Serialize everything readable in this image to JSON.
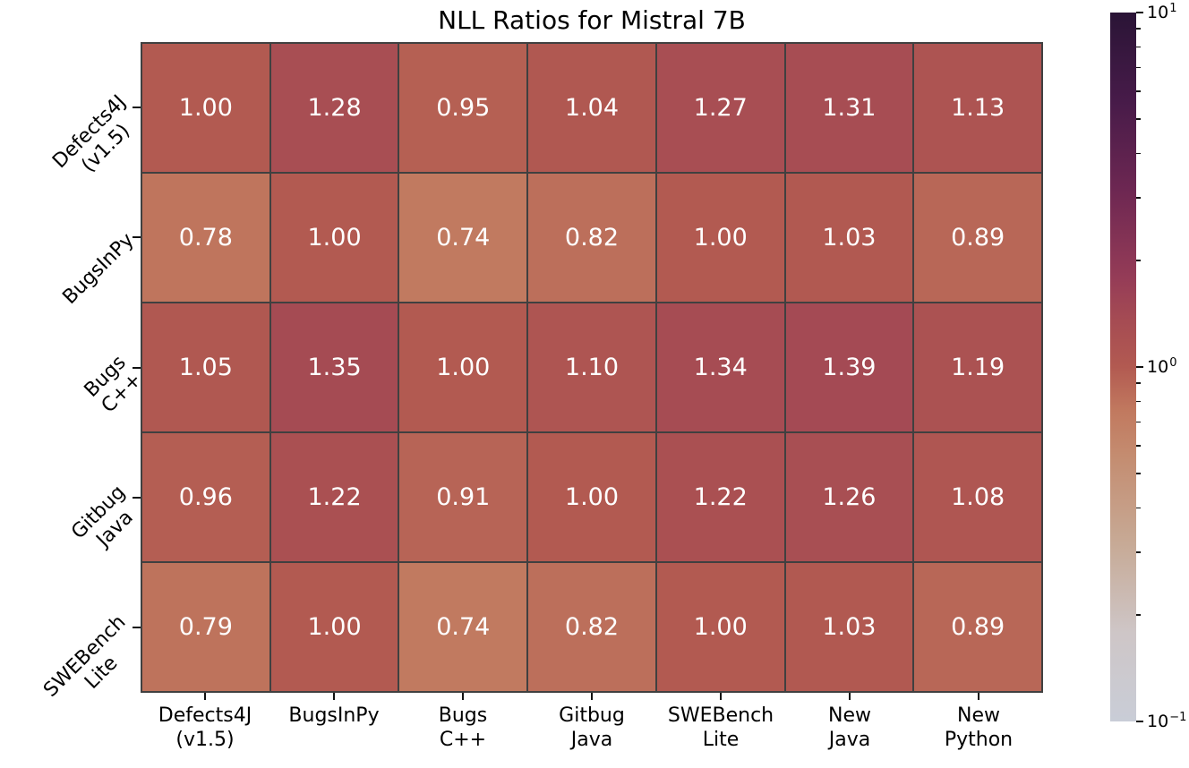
{
  "chart_data": {
    "type": "heatmap",
    "title": "NLL Ratios for Mistral 7B",
    "scale": "log10",
    "value_domain": [
      0.1,
      10
    ],
    "row_labels": [
      [
        "Defects4J",
        "(v1.5)"
      ],
      [
        "BugsInPy"
      ],
      [
        "Bugs",
        "C++"
      ],
      [
        "Gitbug",
        "Java"
      ],
      [
        "SWEBench",
        "Lite"
      ]
    ],
    "col_labels": [
      [
        "Defects4J",
        "(v1.5)"
      ],
      [
        "BugsInPy"
      ],
      [
        "Bugs",
        "C++"
      ],
      [
        "Gitbug",
        "Java"
      ],
      [
        "SWEBench",
        "Lite"
      ],
      [
        "New",
        "Java"
      ],
      [
        "New",
        "Python"
      ]
    ],
    "values": [
      [
        1.0,
        1.28,
        0.95,
        1.04,
        1.27,
        1.31,
        1.13
      ],
      [
        0.78,
        1.0,
        0.74,
        0.82,
        1.0,
        1.03,
        0.89
      ],
      [
        1.05,
        1.35,
        1.0,
        1.1,
        1.34,
        1.39,
        1.19
      ],
      [
        0.96,
        1.22,
        0.91,
        1.0,
        1.22,
        1.26,
        1.08
      ],
      [
        0.79,
        1.0,
        0.74,
        0.82,
        1.0,
        1.03,
        0.89
      ]
    ],
    "cell_text_color": "#ffffff",
    "grid_line_color": "#404040",
    "colorbar": {
      "major_ticks": [
        {
          "base": "10",
          "exp": "1",
          "frac": 1.0
        },
        {
          "base": "10",
          "exp": "0",
          "frac": 0.5
        },
        {
          "base": "10",
          "exp": "−1",
          "frac": 0.0
        }
      ],
      "minor_tick_mantissas": [
        2,
        3,
        4,
        5,
        6,
        7,
        8,
        9
      ],
      "colormap_stops": [
        {
          "t": 0.0,
          "hex": "#c9cdd7"
        },
        {
          "t": 0.125,
          "hex": "#cec6c7"
        },
        {
          "t": 0.25,
          "hex": "#c7aa96"
        },
        {
          "t": 0.375,
          "hex": "#c48c70"
        },
        {
          "t": 0.4375,
          "hex": "#c1795f"
        },
        {
          "t": 0.5,
          "hex": "#b25a51"
        },
        {
          "t": 0.5625,
          "hex": "#a64c53"
        },
        {
          "t": 0.625,
          "hex": "#953c57"
        },
        {
          "t": 0.75,
          "hex": "#6d2752"
        },
        {
          "t": 0.875,
          "hex": "#471b49"
        },
        {
          "t": 1.0,
          "hex": "#2a1436"
        }
      ]
    }
  }
}
